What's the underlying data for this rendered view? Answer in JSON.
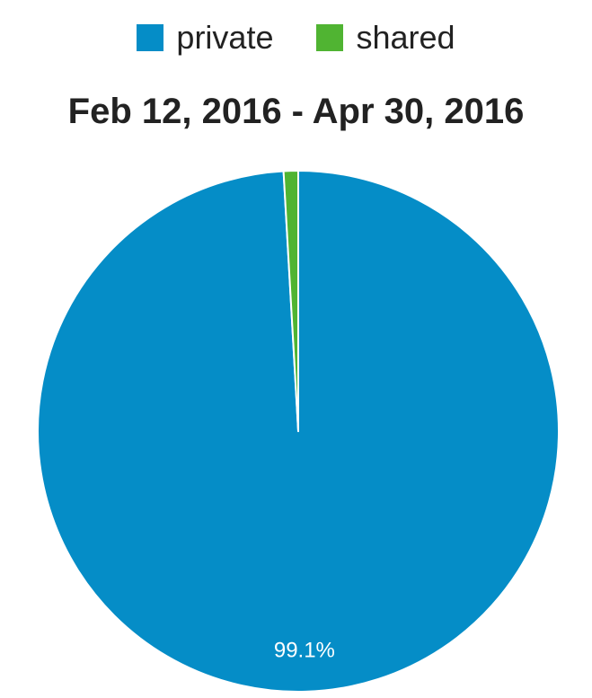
{
  "chart_data": {
    "type": "pie",
    "title": "Feb 12, 2016 - Apr 30, 2016",
    "series": [
      {
        "name": "private",
        "value": 99.1,
        "color": "#058DC7",
        "label": "99.1%"
      },
      {
        "name": "shared",
        "value": 0.9,
        "color": "#50B432",
        "label": ""
      }
    ],
    "legend_position": "top"
  }
}
